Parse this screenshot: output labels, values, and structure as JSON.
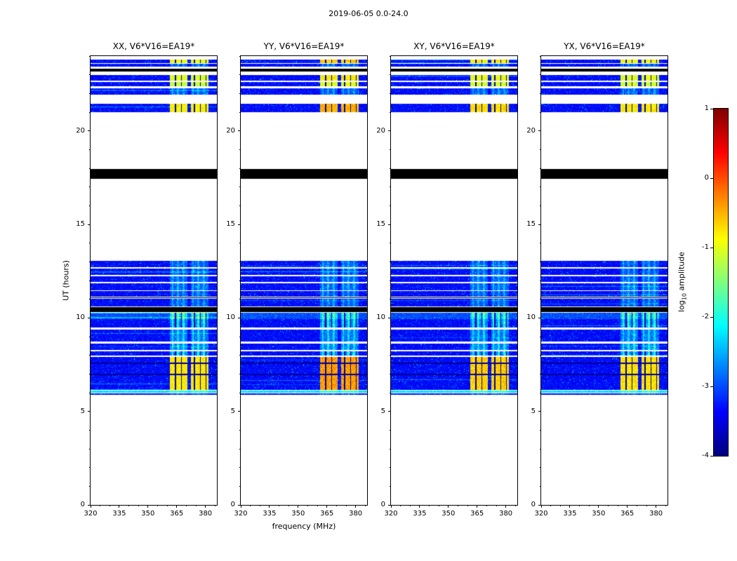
{
  "figure": {
    "background": "#ffffff"
  },
  "chart_data": {
    "type": "heatmap",
    "title": "2019-06-05 0.0-24.0",
    "xlabel": "frequency (MHz)",
    "ylabel": "UT (hours)",
    "xlim": [
      320,
      386
    ],
    "ylim": [
      0,
      24
    ],
    "xticks": [
      320,
      335,
      350,
      365,
      380
    ],
    "x_minor_step": 5,
    "yticks": [
      0,
      5,
      10,
      15,
      20
    ],
    "y_minor_step": 1,
    "colormap": "jet",
    "grid": false,
    "panels": [
      {
        "title": "XX, V6*V16=EA19*",
        "hot_boost": 0.0
      },
      {
        "title": "YY, V6*V16=EA19*",
        "hot_boost": 0.4
      },
      {
        "title": "XY, V6*V16=EA19*",
        "hot_boost": 0.15
      },
      {
        "title": "YX, V6*V16=EA19*",
        "hot_boost": 0.05
      }
    ],
    "colorbar": {
      "label": "log10 amplitude",
      "label_prefix": "log",
      "label_sub": "10",
      "label_suffix": " amplitude",
      "ticks": [
        1,
        0,
        -1,
        -2,
        -3,
        -4
      ],
      "vmin": -4,
      "vmax": 1
    },
    "noise_base": -3.35,
    "rfi_windows": [
      [
        361.6,
        370.6
      ],
      [
        372.4,
        381.6
      ]
    ],
    "rfi_lines": [
      362.9,
      365.7,
      368.5,
      373.5,
      376.3,
      379.2
    ],
    "dark_columns": [
      364.3,
      367.5,
      374.2,
      377.4,
      380.3
    ],
    "bands": [
      {
        "t0": 23.62,
        "t1": 23.8,
        "kind": "noise",
        "rfi": 0.55,
        "hot": 0.75
      },
      {
        "t0": 23.44,
        "t1": 23.57,
        "kind": "noise",
        "rfi": 0.45
      },
      {
        "t0": 23.17,
        "t1": 23.33,
        "kind": "black"
      },
      {
        "t0": 22.68,
        "t1": 23.0,
        "kind": "noise",
        "rfi": 0.65,
        "hot": 0.55
      },
      {
        "t0": 22.4,
        "t1": 22.62,
        "kind": "noise",
        "rfi": 0.6,
        "hot": 0.35
      },
      {
        "t0": 21.95,
        "t1": 22.28,
        "kind": "noise",
        "rfi": 0.5
      },
      {
        "t0": 21.0,
        "t1": 21.45,
        "kind": "noise",
        "rfi": 0.7,
        "hot": 0.9
      },
      {
        "t0": 17.45,
        "t1": 17.95,
        "kind": "black"
      },
      {
        "t0": 12.7,
        "t1": 13.05,
        "kind": "noise",
        "rfi": 0.5
      },
      {
        "t0": 12.3,
        "t1": 12.64,
        "kind": "noise",
        "rfi": 0.5
      },
      {
        "t0": 11.92,
        "t1": 12.22,
        "kind": "noise",
        "rfi": 0.55
      },
      {
        "t0": 11.48,
        "t1": 11.86,
        "kind": "noise",
        "rfi": 0.6
      },
      {
        "t0": 11.13,
        "t1": 11.44,
        "kind": "noise",
        "rfi": 0.5
      },
      {
        "t0": 11.06,
        "t1": 11.11,
        "kind": "black"
      },
      {
        "t0": 10.6,
        "t1": 11.02,
        "kind": "noise",
        "rfi": 0.5
      },
      {
        "t0": 10.3,
        "t1": 10.56,
        "kind": "black"
      },
      {
        "t0": 9.95,
        "t1": 10.28,
        "kind": "noise",
        "rfi": 0.9,
        "rowadd": 0.35
      },
      {
        "t0": 9.48,
        "t1": 9.92,
        "kind": "noise",
        "rfi": 0.85
      },
      {
        "t0": 8.72,
        "t1": 9.38,
        "kind": "noise",
        "rfi": 0.7
      },
      {
        "t0": 8.28,
        "t1": 8.64,
        "kind": "noise",
        "rfi": 0.8
      },
      {
        "t0": 7.97,
        "t1": 8.2,
        "kind": "noise",
        "rfi": 0.85
      },
      {
        "t0": 6.15,
        "t1": 7.9,
        "kind": "noise",
        "rfi": 0.75,
        "hot": 1.0,
        "darkrows": [
          [
            6.95,
            7.01
          ],
          [
            7.55,
            7.6
          ]
        ]
      },
      {
        "t0": 6.0,
        "t1": 6.12,
        "kind": "noise",
        "rfi": 0.4,
        "rowadd": 1.1
      },
      {
        "t0": 5.88,
        "t1": 5.97,
        "kind": "noise",
        "rfi": 0.3
      }
    ]
  }
}
